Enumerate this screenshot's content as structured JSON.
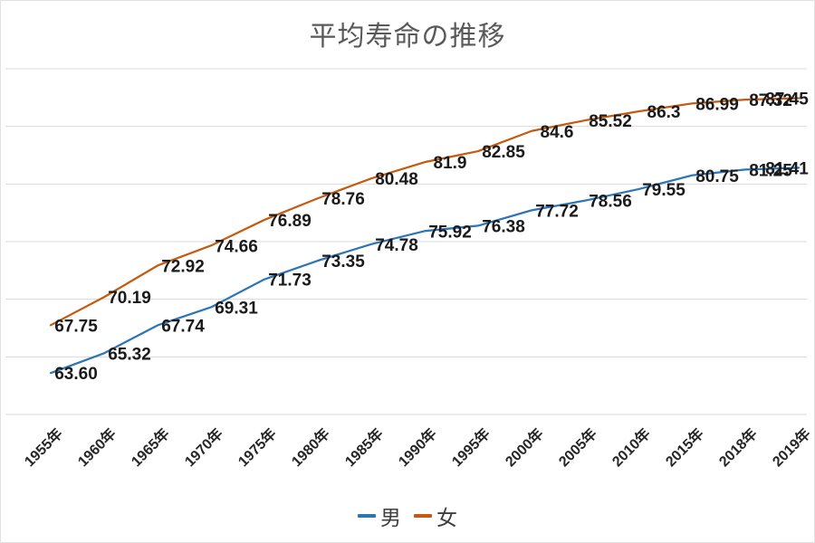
{
  "title": "平均寿命の推移",
  "chart_data": {
    "type": "line",
    "title": "平均寿命の推移",
    "categories": [
      "1955年",
      "1960年",
      "1965年",
      "1970年",
      "1975年",
      "1980年",
      "1985年",
      "1990年",
      "1995年",
      "2000年",
      "2005年",
      "2010年",
      "2015年",
      "2018年",
      "2019年"
    ],
    "series": [
      {
        "name": "男",
        "color": "#2E75B6",
        "values": [
          63.6,
          65.32,
          67.74,
          69.31,
          71.73,
          73.35,
          74.78,
          75.92,
          76.38,
          77.72,
          78.56,
          79.55,
          80.75,
          81.25,
          81.41
        ],
        "labels": [
          "63.60",
          "65.32",
          "67.74",
          "69.31",
          "71.73",
          "73.35",
          "74.78",
          "75.92",
          "76.38",
          "77.72",
          "78.56",
          "79.55",
          "80.75",
          "81.25",
          "81.41"
        ]
      },
      {
        "name": "女",
        "color": "#C55A11",
        "values": [
          67.75,
          70.19,
          72.92,
          74.66,
          76.89,
          78.76,
          80.48,
          81.9,
          82.85,
          84.6,
          85.52,
          86.3,
          86.99,
          87.32,
          87.45
        ],
        "labels": [
          "67.75",
          "70.19",
          "72.92",
          "74.66",
          "76.89",
          "78.76",
          "80.48",
          "81.9",
          "82.85",
          "84.6",
          "85.52",
          "86.3",
          "86.99",
          "87.32",
          "87.45"
        ]
      }
    ],
    "xlabel": "",
    "ylabel": "",
    "ylim": [
      60,
      90
    ],
    "gridline_step": 5,
    "grid": true,
    "y_axis_labels_visible": false,
    "data_labels": true,
    "legend_position": "bottom",
    "gridline_color": "#d9d9d9",
    "x_label_rotation_deg": -45
  }
}
